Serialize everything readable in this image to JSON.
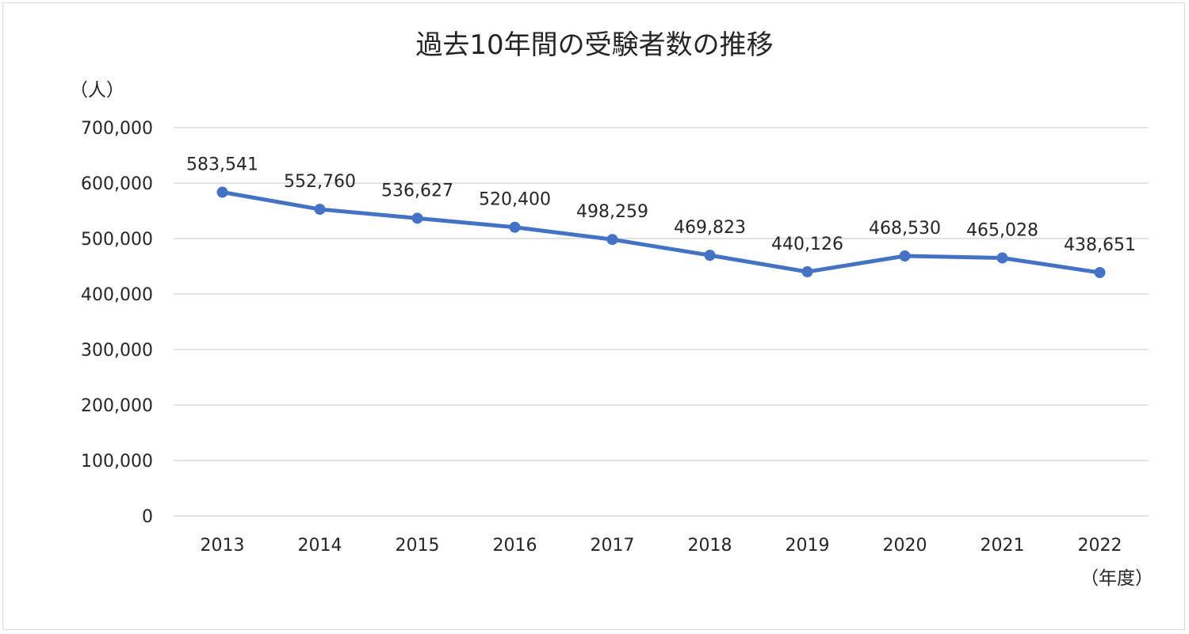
{
  "chart_data": {
    "type": "line",
    "title": "過去10年間の受験者数の推移",
    "ylabel": "（人）",
    "xlabel": "（年度）",
    "ylim": [
      0,
      700000
    ],
    "ytick_step": 100000,
    "yticks": [
      "0",
      "100,000",
      "200,000",
      "300,000",
      "400,000",
      "500,000",
      "600,000",
      "700,000"
    ],
    "categories": [
      "2013",
      "2014",
      "2015",
      "2016",
      "2017",
      "2018",
      "2019",
      "2020",
      "2021",
      "2022"
    ],
    "series": [
      {
        "values": [
          583541,
          552760,
          536627,
          520400,
          498259,
          469823,
          440126,
          468530,
          465028,
          438651
        ],
        "labels": [
          "583,541",
          "552,760",
          "536,627",
          "520,400",
          "498,259",
          "469,823",
          "440,126",
          "468,530",
          "465,028",
          "438,651"
        ],
        "color": "#4472c4"
      }
    ],
    "grid": true,
    "legend": "none"
  }
}
